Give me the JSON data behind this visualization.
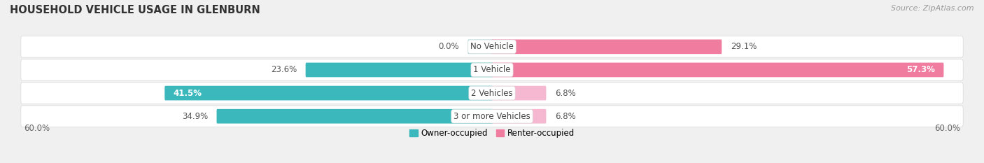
{
  "title": "HOUSEHOLD VEHICLE USAGE IN GLENBURN",
  "source": "Source: ZipAtlas.com",
  "categories": [
    "No Vehicle",
    "1 Vehicle",
    "2 Vehicles",
    "3 or more Vehicles"
  ],
  "owner_values": [
    0.0,
    23.6,
    41.5,
    34.9
  ],
  "renter_values": [
    29.1,
    57.3,
    6.8,
    6.8
  ],
  "owner_color": "#3ab8bc",
  "owner_color_light": "#a8dde0",
  "renter_color": "#f07ca0",
  "renter_color_light": "#f5b8d0",
  "axis_max": 60.0,
  "axis_label_left": "60.0%",
  "axis_label_right": "60.0%",
  "legend_owner": "Owner-occupied",
  "legend_renter": "Renter-occupied",
  "bg_color": "#f0f0f0",
  "row_bg_color": "#ffffff",
  "row_border_color": "#d8d8d8",
  "title_fontsize": 10.5,
  "source_fontsize": 8,
  "label_fontsize": 8.5,
  "category_fontsize": 8.5,
  "no_vehicle_owner_display": 3.0
}
